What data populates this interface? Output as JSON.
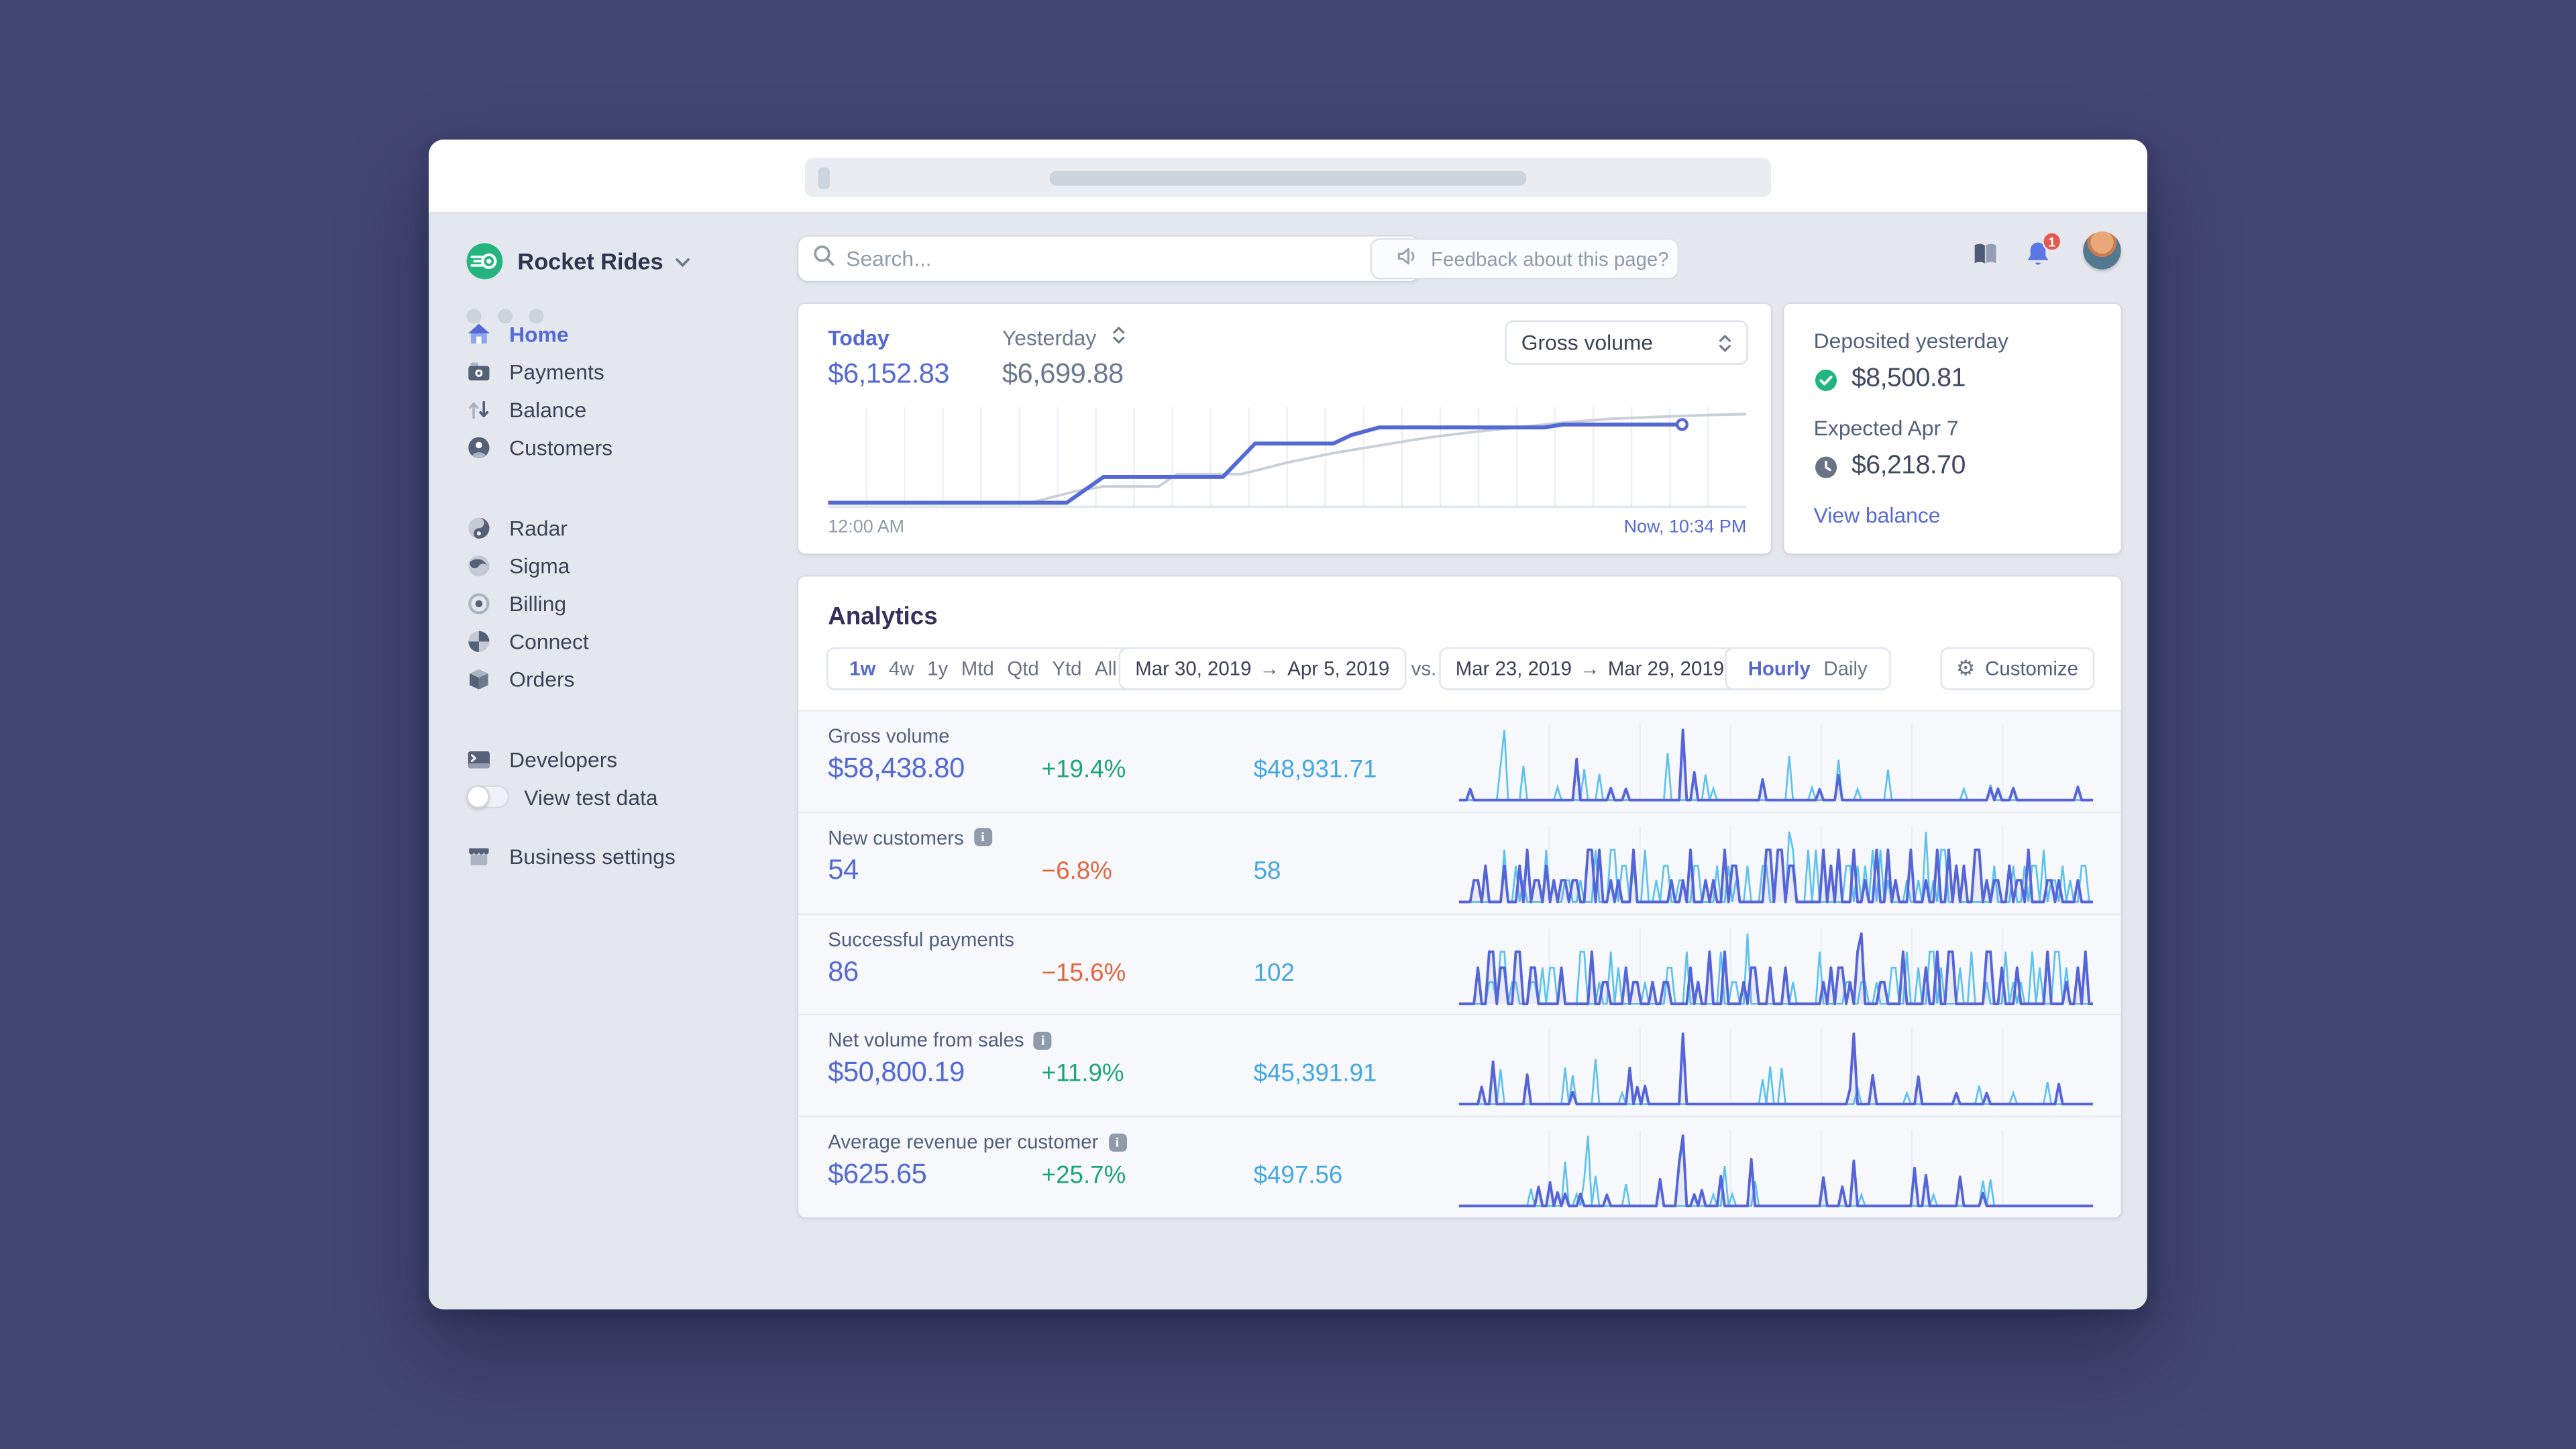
{
  "sidebar": {
    "company": "Rocket Rides",
    "groups": [
      {
        "id": "main",
        "items": [
          {
            "icon": "home",
            "label": "Home",
            "active": true
          },
          {
            "icon": "payments",
            "label": "Payments",
            "active": false
          },
          {
            "icon": "balance",
            "label": "Balance",
            "active": false
          },
          {
            "icon": "customers",
            "label": "Customers",
            "active": false
          }
        ]
      },
      {
        "id": "products",
        "items": [
          {
            "icon": "radar",
            "label": "Radar",
            "active": false
          },
          {
            "icon": "sigma",
            "label": "Sigma",
            "active": false
          },
          {
            "icon": "billing",
            "label": "Billing",
            "active": false
          },
          {
            "icon": "connect",
            "label": "Connect",
            "active": false
          },
          {
            "icon": "orders",
            "label": "Orders",
            "active": false
          }
        ]
      }
    ],
    "developers_label": "Developers",
    "view_test_data_label": "View test data",
    "business_settings_label": "Business settings"
  },
  "header": {
    "search_placeholder": "Search...",
    "feedback_label": "Feedback about this page?",
    "notification_count": "1"
  },
  "overview": {
    "today_label": "Today",
    "today_value": "$6,152.83",
    "yesterday_label": "Yesterday",
    "yesterday_value": "$6,699.88",
    "metric_select": "Gross volume",
    "x_start": "12:00 AM",
    "x_end": "Now, 10:34 PM",
    "chart": {
      "type": "line",
      "grid_cells": 24,
      "today": [
        [
          0,
          0
        ],
        [
          26,
          0
        ],
        [
          30,
          0.27
        ],
        [
          43,
          0.27
        ],
        [
          46.5,
          0.62
        ],
        [
          55,
          0.62
        ],
        [
          57,
          0.71
        ],
        [
          60,
          0.79
        ],
        [
          78,
          0.79
        ],
        [
          80,
          0.82
        ],
        [
          93,
          0.82
        ]
      ],
      "yesterday": [
        [
          0,
          0
        ],
        [
          22,
          0
        ],
        [
          27,
          0.12
        ],
        [
          30,
          0.17
        ],
        [
          36,
          0.17
        ],
        [
          38,
          0.3
        ],
        [
          45,
          0.3
        ],
        [
          50,
          0.42
        ],
        [
          55,
          0.52
        ],
        [
          60,
          0.6
        ],
        [
          65,
          0.68
        ],
        [
          70,
          0.74
        ],
        [
          75,
          0.79
        ],
        [
          80,
          0.84
        ],
        [
          85,
          0.88
        ],
        [
          90,
          0.9
        ],
        [
          96,
          0.92
        ],
        [
          100,
          0.93
        ]
      ]
    }
  },
  "deposits": {
    "deposited_label": "Deposited yesterday",
    "deposited_value": "$8,500.81",
    "expected_label": "Expected Apr 7",
    "expected_value": "$6,218.70",
    "link_label": "View balance"
  },
  "analytics": {
    "title": "Analytics",
    "presets": [
      "1w",
      "4w",
      "1y",
      "Mtd",
      "Qtd",
      "Ytd",
      "All"
    ],
    "active_preset": "1w",
    "range_a_start": "Mar 30, 2019",
    "range_a_end": "Apr 5, 2019",
    "vs_label": "vs.",
    "range_b_start": "Mar 23, 2019",
    "range_b_end": "Mar 29, 2019",
    "arrow": "→",
    "granularities": [
      "Hourly",
      "Daily"
    ],
    "active_granularity": "Hourly",
    "customize_label": "Customize",
    "rows": [
      {
        "label": "Gross volume",
        "info": false,
        "value": "$58,438.80",
        "delta": "+19.4%",
        "trend": "up",
        "compare": "$48,931.71",
        "spark": {
          "seed": 7,
          "density": 0.1,
          "quantized": false,
          "peaks": [
            0.35
          ],
          "compare_peaks": [
            0.07
          ]
        }
      },
      {
        "label": "New customers",
        "info": true,
        "value": "54",
        "delta": "−6.8%",
        "trend": "down",
        "compare": "58",
        "spark": {
          "seed": 13,
          "density": 0.42,
          "quantized": true,
          "peaks": [],
          "compare_peaks": [
            0.52,
            0.73
          ]
        }
      },
      {
        "label": "Successful payments",
        "info": false,
        "value": "86",
        "delta": "−15.6%",
        "trend": "down",
        "compare": "102",
        "spark": {
          "seed": 21,
          "density": 0.38,
          "quantized": true,
          "peaks": [
            0.63
          ],
          "compare_peaks": [
            0.45
          ]
        }
      },
      {
        "label": "Net volume from sales",
        "info": true,
        "value": "$50,800.19",
        "delta": "+11.9%",
        "trend": "up",
        "compare": "$45,391.91",
        "spark": {
          "seed": 31,
          "density": 0.09,
          "quantized": false,
          "peaks": [
            0.35,
            0.62
          ],
          "compare_peaks": []
        }
      },
      {
        "label": "Average revenue per customer",
        "info": true,
        "value": "$625.65",
        "delta": "+25.7%",
        "trend": "up",
        "compare": "$497.56",
        "spark": {
          "seed": 42,
          "density": 0.14,
          "quantized": false,
          "peaks": [
            0.35
          ],
          "compare_peaks": [
            0.2
          ]
        }
      }
    ]
  },
  "colors": {
    "accent": "#5469d4",
    "green": "#1ea672",
    "orange": "#e5643e",
    "compare_blue": "#45a7e2",
    "spark_current": "#5565d8",
    "spark_compare": "#5fc1ee",
    "yesterday_line": "#c9cfd9",
    "success_green": "#24b47e",
    "badge_red": "#e25950",
    "grid": "#eceff4"
  }
}
